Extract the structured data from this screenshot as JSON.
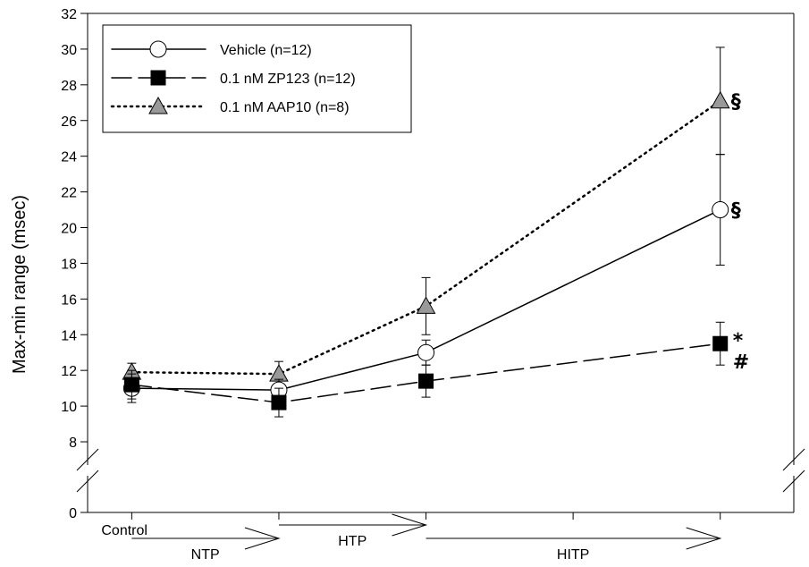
{
  "chart_data": {
    "type": "line",
    "ylabel": "Max-min range (msec)",
    "ylim": [
      0,
      32
    ],
    "y_break": [
      0,
      8
    ],
    "yticks": [
      0,
      8,
      10,
      12,
      14,
      16,
      18,
      20,
      22,
      24,
      26,
      28,
      30,
      32
    ],
    "x": [
      1,
      2,
      3,
      5
    ],
    "xlim": [
      0.7,
      5.5
    ],
    "xticks": [
      1,
      2,
      3,
      4,
      5
    ],
    "grid": false,
    "legend_position": "top-left",
    "series": [
      {
        "name": "Vehicle (n=12)",
        "marker": "circle-open",
        "line": "solid",
        "values": [
          11.0,
          10.9,
          13.0,
          21.0
        ],
        "errors": [
          0.8,
          0.6,
          0.7,
          3.1
        ]
      },
      {
        "name": "0.1 nM ZP123 (n=12)",
        "marker": "square-filled",
        "line": "dashed",
        "values": [
          11.2,
          10.2,
          11.4,
          13.5
        ],
        "errors": [
          0.8,
          0.8,
          0.9,
          1.2
        ]
      },
      {
        "name": "0.1 nM AAP10 (n=8)",
        "marker": "triangle-gray",
        "line": "dotted",
        "values": [
          11.9,
          11.8,
          15.6,
          27.1
        ],
        "errors": [
          0.5,
          0.7,
          1.6,
          3.0
        ]
      }
    ],
    "annotations": [
      {
        "text": "§",
        "x": 5,
        "y": 27.1
      },
      {
        "text": "§",
        "x": 5,
        "y": 21.0
      },
      {
        "text": "*",
        "x": 5,
        "y": 13.5
      },
      {
        "text": "#",
        "x": 5,
        "y": 13.5
      }
    ],
    "x_labels": {
      "control": "Control",
      "phases": [
        {
          "label": "NTP",
          "from": 1,
          "to": 2
        },
        {
          "label": "HTP",
          "from": 2,
          "to": 3
        },
        {
          "label": "HITP",
          "from": 3,
          "to": 5
        }
      ]
    },
    "colors": {
      "axis": "#000000",
      "triangle_fill": "#999999",
      "square_fill": "#000000",
      "circle_fill": "#ffffff"
    }
  }
}
